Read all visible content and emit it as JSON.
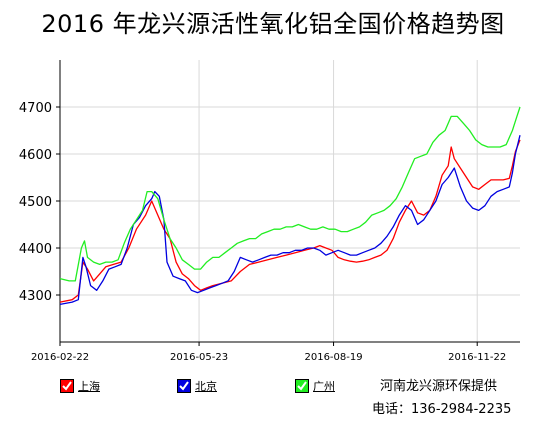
{
  "title": "2016 年龙兴源活性氧化铝全国价格趋势图",
  "provider": {
    "name": "河南龙兴源环保提供",
    "phone_label": "电话：",
    "phone": "136-2984-2235"
  },
  "legend": [
    {
      "name": "上海",
      "color": "#ff0000"
    },
    {
      "name": "北京",
      "color": "#0000e0"
    },
    {
      "name": "广州",
      "color": "#22ee22"
    }
  ],
  "chart_data": {
    "type": "line",
    "title": "2016 年龙兴源活性氧化铝全国价格趋势图",
    "xlabel": "",
    "ylabel": "",
    "ylim": [
      4200,
      4800
    ],
    "yticks": [
      4300,
      4400,
      4500,
      4600,
      4700
    ],
    "xticks": [
      "2016-02-22",
      "2016-05-23",
      "2016-08-19",
      "2016-11-22"
    ],
    "xlim_days": [
      0,
      301
    ],
    "x_unit": "days from 2016-02-22",
    "grid": true,
    "legend_position": "bottom",
    "series": [
      {
        "name": "上海",
        "color": "#ff0000",
        "points": [
          [
            0,
            4285
          ],
          [
            8,
            4290
          ],
          [
            12,
            4300
          ],
          [
            15,
            4370
          ],
          [
            18,
            4355
          ],
          [
            22,
            4330
          ],
          [
            26,
            4345
          ],
          [
            30,
            4360
          ],
          [
            35,
            4365
          ],
          [
            40,
            4370
          ],
          [
            45,
            4400
          ],
          [
            50,
            4440
          ],
          [
            56,
            4470
          ],
          [
            60,
            4500
          ],
          [
            64,
            4470
          ],
          [
            68,
            4440
          ],
          [
            72,
            4420
          ],
          [
            76,
            4370
          ],
          [
            80,
            4345
          ],
          [
            84,
            4335
          ],
          [
            88,
            4320
          ],
          [
            92,
            4310
          ],
          [
            96,
            4315
          ],
          [
            100,
            4320
          ],
          [
            106,
            4325
          ],
          [
            112,
            4330
          ],
          [
            118,
            4350
          ],
          [
            124,
            4365
          ],
          [
            130,
            4370
          ],
          [
            136,
            4375
          ],
          [
            142,
            4380
          ],
          [
            148,
            4385
          ],
          [
            154,
            4390
          ],
          [
            160,
            4395
          ],
          [
            166,
            4400
          ],
          [
            170,
            4405
          ],
          [
            174,
            4400
          ],
          [
            178,
            4395
          ],
          [
            182,
            4380
          ],
          [
            186,
            4375
          ],
          [
            190,
            4372
          ],
          [
            194,
            4370
          ],
          [
            198,
            4372
          ],
          [
            202,
            4375
          ],
          [
            206,
            4380
          ],
          [
            210,
            4385
          ],
          [
            214,
            4395
          ],
          [
            218,
            4420
          ],
          [
            222,
            4455
          ],
          [
            226,
            4480
          ],
          [
            230,
            4500
          ],
          [
            234,
            4475
          ],
          [
            238,
            4470
          ],
          [
            242,
            4480
          ],
          [
            246,
            4510
          ],
          [
            250,
            4555
          ],
          [
            254,
            4575
          ],
          [
            256,
            4615
          ],
          [
            258,
            4590
          ],
          [
            262,
            4570
          ],
          [
            266,
            4550
          ],
          [
            270,
            4530
          ],
          [
            274,
            4525
          ],
          [
            278,
            4535
          ],
          [
            282,
            4545
          ],
          [
            286,
            4545
          ],
          [
            290,
            4545
          ],
          [
            294,
            4548
          ],
          [
            296,
            4575
          ],
          [
            298,
            4605
          ],
          [
            301,
            4630
          ]
        ]
      },
      {
        "name": "北京",
        "color": "#0000e0",
        "points": [
          [
            0,
            4280
          ],
          [
            8,
            4285
          ],
          [
            12,
            4290
          ],
          [
            15,
            4380
          ],
          [
            17,
            4360
          ],
          [
            20,
            4320
          ],
          [
            24,
            4310
          ],
          [
            28,
            4330
          ],
          [
            32,
            4355
          ],
          [
            36,
            4360
          ],
          [
            40,
            4365
          ],
          [
            44,
            4400
          ],
          [
            48,
            4450
          ],
          [
            52,
            4465
          ],
          [
            56,
            4490
          ],
          [
            60,
            4505
          ],
          [
            62,
            4520
          ],
          [
            65,
            4510
          ],
          [
            68,
            4460
          ],
          [
            70,
            4370
          ],
          [
            74,
            4340
          ],
          [
            78,
            4335
          ],
          [
            82,
            4330
          ],
          [
            86,
            4310
          ],
          [
            90,
            4305
          ],
          [
            94,
            4310
          ],
          [
            98,
            4315
          ],
          [
            102,
            4320
          ],
          [
            106,
            4325
          ],
          [
            110,
            4330
          ],
          [
            114,
            4350
          ],
          [
            118,
            4380
          ],
          [
            122,
            4375
          ],
          [
            126,
            4370
          ],
          [
            130,
            4375
          ],
          [
            134,
            4380
          ],
          [
            138,
            4385
          ],
          [
            142,
            4385
          ],
          [
            146,
            4390
          ],
          [
            150,
            4390
          ],
          [
            154,
            4395
          ],
          [
            158,
            4395
          ],
          [
            162,
            4400
          ],
          [
            166,
            4400
          ],
          [
            170,
            4395
          ],
          [
            174,
            4385
          ],
          [
            178,
            4390
          ],
          [
            182,
            4395
          ],
          [
            186,
            4390
          ],
          [
            190,
            4385
          ],
          [
            194,
            4385
          ],
          [
            198,
            4390
          ],
          [
            202,
            4395
          ],
          [
            206,
            4400
          ],
          [
            210,
            4410
          ],
          [
            214,
            4425
          ],
          [
            218,
            4445
          ],
          [
            222,
            4470
          ],
          [
            226,
            4490
          ],
          [
            230,
            4480
          ],
          [
            234,
            4450
          ],
          [
            238,
            4460
          ],
          [
            242,
            4480
          ],
          [
            246,
            4500
          ],
          [
            250,
            4535
          ],
          [
            254,
            4550
          ],
          [
            258,
            4570
          ],
          [
            262,
            4530
          ],
          [
            266,
            4500
          ],
          [
            270,
            4485
          ],
          [
            274,
            4480
          ],
          [
            278,
            4490
          ],
          [
            282,
            4510
          ],
          [
            286,
            4520
          ],
          [
            290,
            4525
          ],
          [
            294,
            4530
          ],
          [
            296,
            4560
          ],
          [
            298,
            4600
          ],
          [
            301,
            4640
          ]
        ]
      },
      {
        "name": "广州",
        "color": "#22ee22",
        "points": [
          [
            0,
            4335
          ],
          [
            6,
            4330
          ],
          [
            10,
            4330
          ],
          [
            14,
            4400
          ],
          [
            16,
            4415
          ],
          [
            18,
            4380
          ],
          [
            22,
            4370
          ],
          [
            26,
            4365
          ],
          [
            30,
            4370
          ],
          [
            34,
            4370
          ],
          [
            38,
            4375
          ],
          [
            42,
            4410
          ],
          [
            46,
            4440
          ],
          [
            50,
            4460
          ],
          [
            54,
            4480
          ],
          [
            57,
            4520
          ],
          [
            60,
            4520
          ],
          [
            64,
            4505
          ],
          [
            68,
            4460
          ],
          [
            72,
            4420
          ],
          [
            76,
            4400
          ],
          [
            80,
            4375
          ],
          [
            84,
            4365
          ],
          [
            88,
            4355
          ],
          [
            92,
            4355
          ],
          [
            96,
            4370
          ],
          [
            100,
            4380
          ],
          [
            104,
            4380
          ],
          [
            108,
            4390
          ],
          [
            112,
            4400
          ],
          [
            116,
            4410
          ],
          [
            120,
            4415
          ],
          [
            124,
            4420
          ],
          [
            128,
            4420
          ],
          [
            132,
            4430
          ],
          [
            136,
            4435
          ],
          [
            140,
            4440
          ],
          [
            144,
            4440
          ],
          [
            148,
            4445
          ],
          [
            152,
            4445
          ],
          [
            156,
            4450
          ],
          [
            160,
            4445
          ],
          [
            164,
            4440
          ],
          [
            168,
            4440
          ],
          [
            172,
            4445
          ],
          [
            176,
            4440
          ],
          [
            180,
            4440
          ],
          [
            184,
            4435
          ],
          [
            188,
            4435
          ],
          [
            192,
            4440
          ],
          [
            196,
            4445
          ],
          [
            200,
            4455
          ],
          [
            204,
            4470
          ],
          [
            208,
            4475
          ],
          [
            212,
            4480
          ],
          [
            216,
            4490
          ],
          [
            220,
            4505
          ],
          [
            224,
            4530
          ],
          [
            228,
            4560
          ],
          [
            232,
            4590
          ],
          [
            236,
            4595
          ],
          [
            240,
            4600
          ],
          [
            244,
            4625
          ],
          [
            248,
            4640
          ],
          [
            252,
            4650
          ],
          [
            256,
            4680
          ],
          [
            260,
            4680
          ],
          [
            264,
            4665
          ],
          [
            268,
            4650
          ],
          [
            272,
            4630
          ],
          [
            276,
            4620
          ],
          [
            280,
            4615
          ],
          [
            284,
            4615
          ],
          [
            288,
            4615
          ],
          [
            292,
            4620
          ],
          [
            296,
            4650
          ],
          [
            299,
            4680
          ],
          [
            301,
            4700
          ]
        ]
      }
    ]
  }
}
